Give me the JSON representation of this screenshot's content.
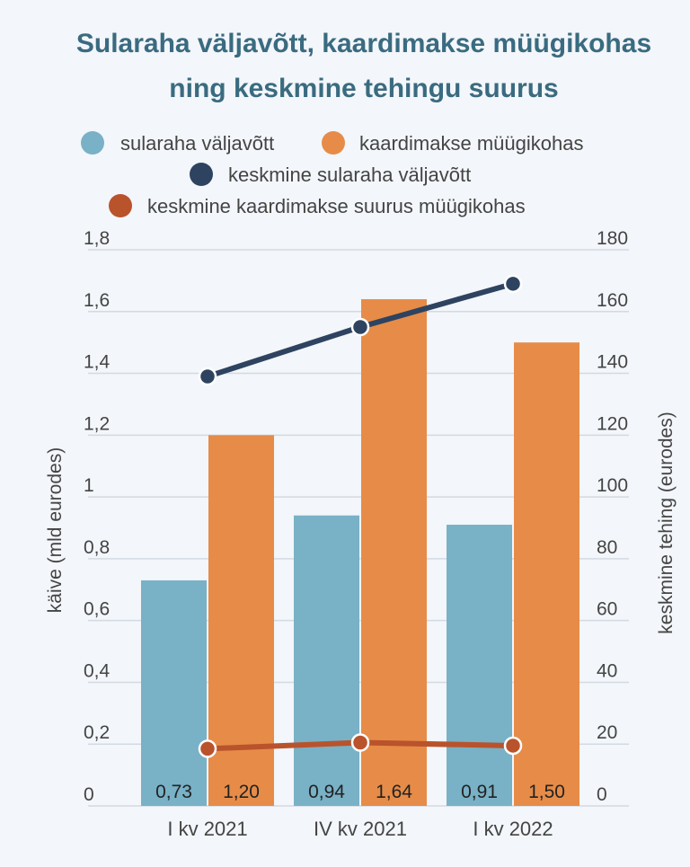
{
  "chart_data": {
    "type": "bar",
    "title_line1": "Sularaha väljavõtt, kaardimakse müügikohas",
    "title_line2": "ning keskmine tehingu suurus",
    "categories": [
      "I kv 2021",
      "IV kv 2021",
      "I kv 2022"
    ],
    "series": [
      {
        "name": "sularaha väljavõtt",
        "type": "bar",
        "axis": "left",
        "color": "#79b1c6",
        "values": [
          0.73,
          0.94,
          0.91
        ],
        "labels": [
          "0,73",
          "0,94",
          "0,91"
        ]
      },
      {
        "name": "kaardimakse müügikohas",
        "type": "bar",
        "axis": "left",
        "color": "#e68c48",
        "values": [
          1.2,
          1.64,
          1.5
        ],
        "labels": [
          "1,20",
          "1,64",
          "1,50"
        ]
      },
      {
        "name": "keskmine sularaha väljavõtt",
        "type": "line",
        "axis": "right",
        "color": "#2e4360",
        "values": [
          139,
          155,
          169
        ]
      },
      {
        "name": "keskmine kaardimakse suurus müügikohas",
        "type": "line",
        "axis": "right",
        "color": "#b9532c",
        "values": [
          18.5,
          20.5,
          19.5
        ]
      }
    ],
    "ylabel_left": "käive (mld eurodes)",
    "ylabel_right": "keskmine tehing (eurodes)",
    "ylim_left": [
      0,
      1.8
    ],
    "ylim_right": [
      0,
      180
    ],
    "yticks_left": [
      "0",
      "0,2",
      "0,4",
      "0,6",
      "0,8",
      "1",
      "1,2",
      "1,4",
      "1,6",
      "1,8"
    ],
    "yticks_right": [
      "0",
      "20",
      "40",
      "60",
      "80",
      "100",
      "120",
      "140",
      "160",
      "180"
    ],
    "grid": true,
    "legend_position": "top"
  },
  "colors": {
    "title": "#3a6b80",
    "grid": "#d3dae2",
    "text": "#444444",
    "label_dark": "#222222"
  }
}
